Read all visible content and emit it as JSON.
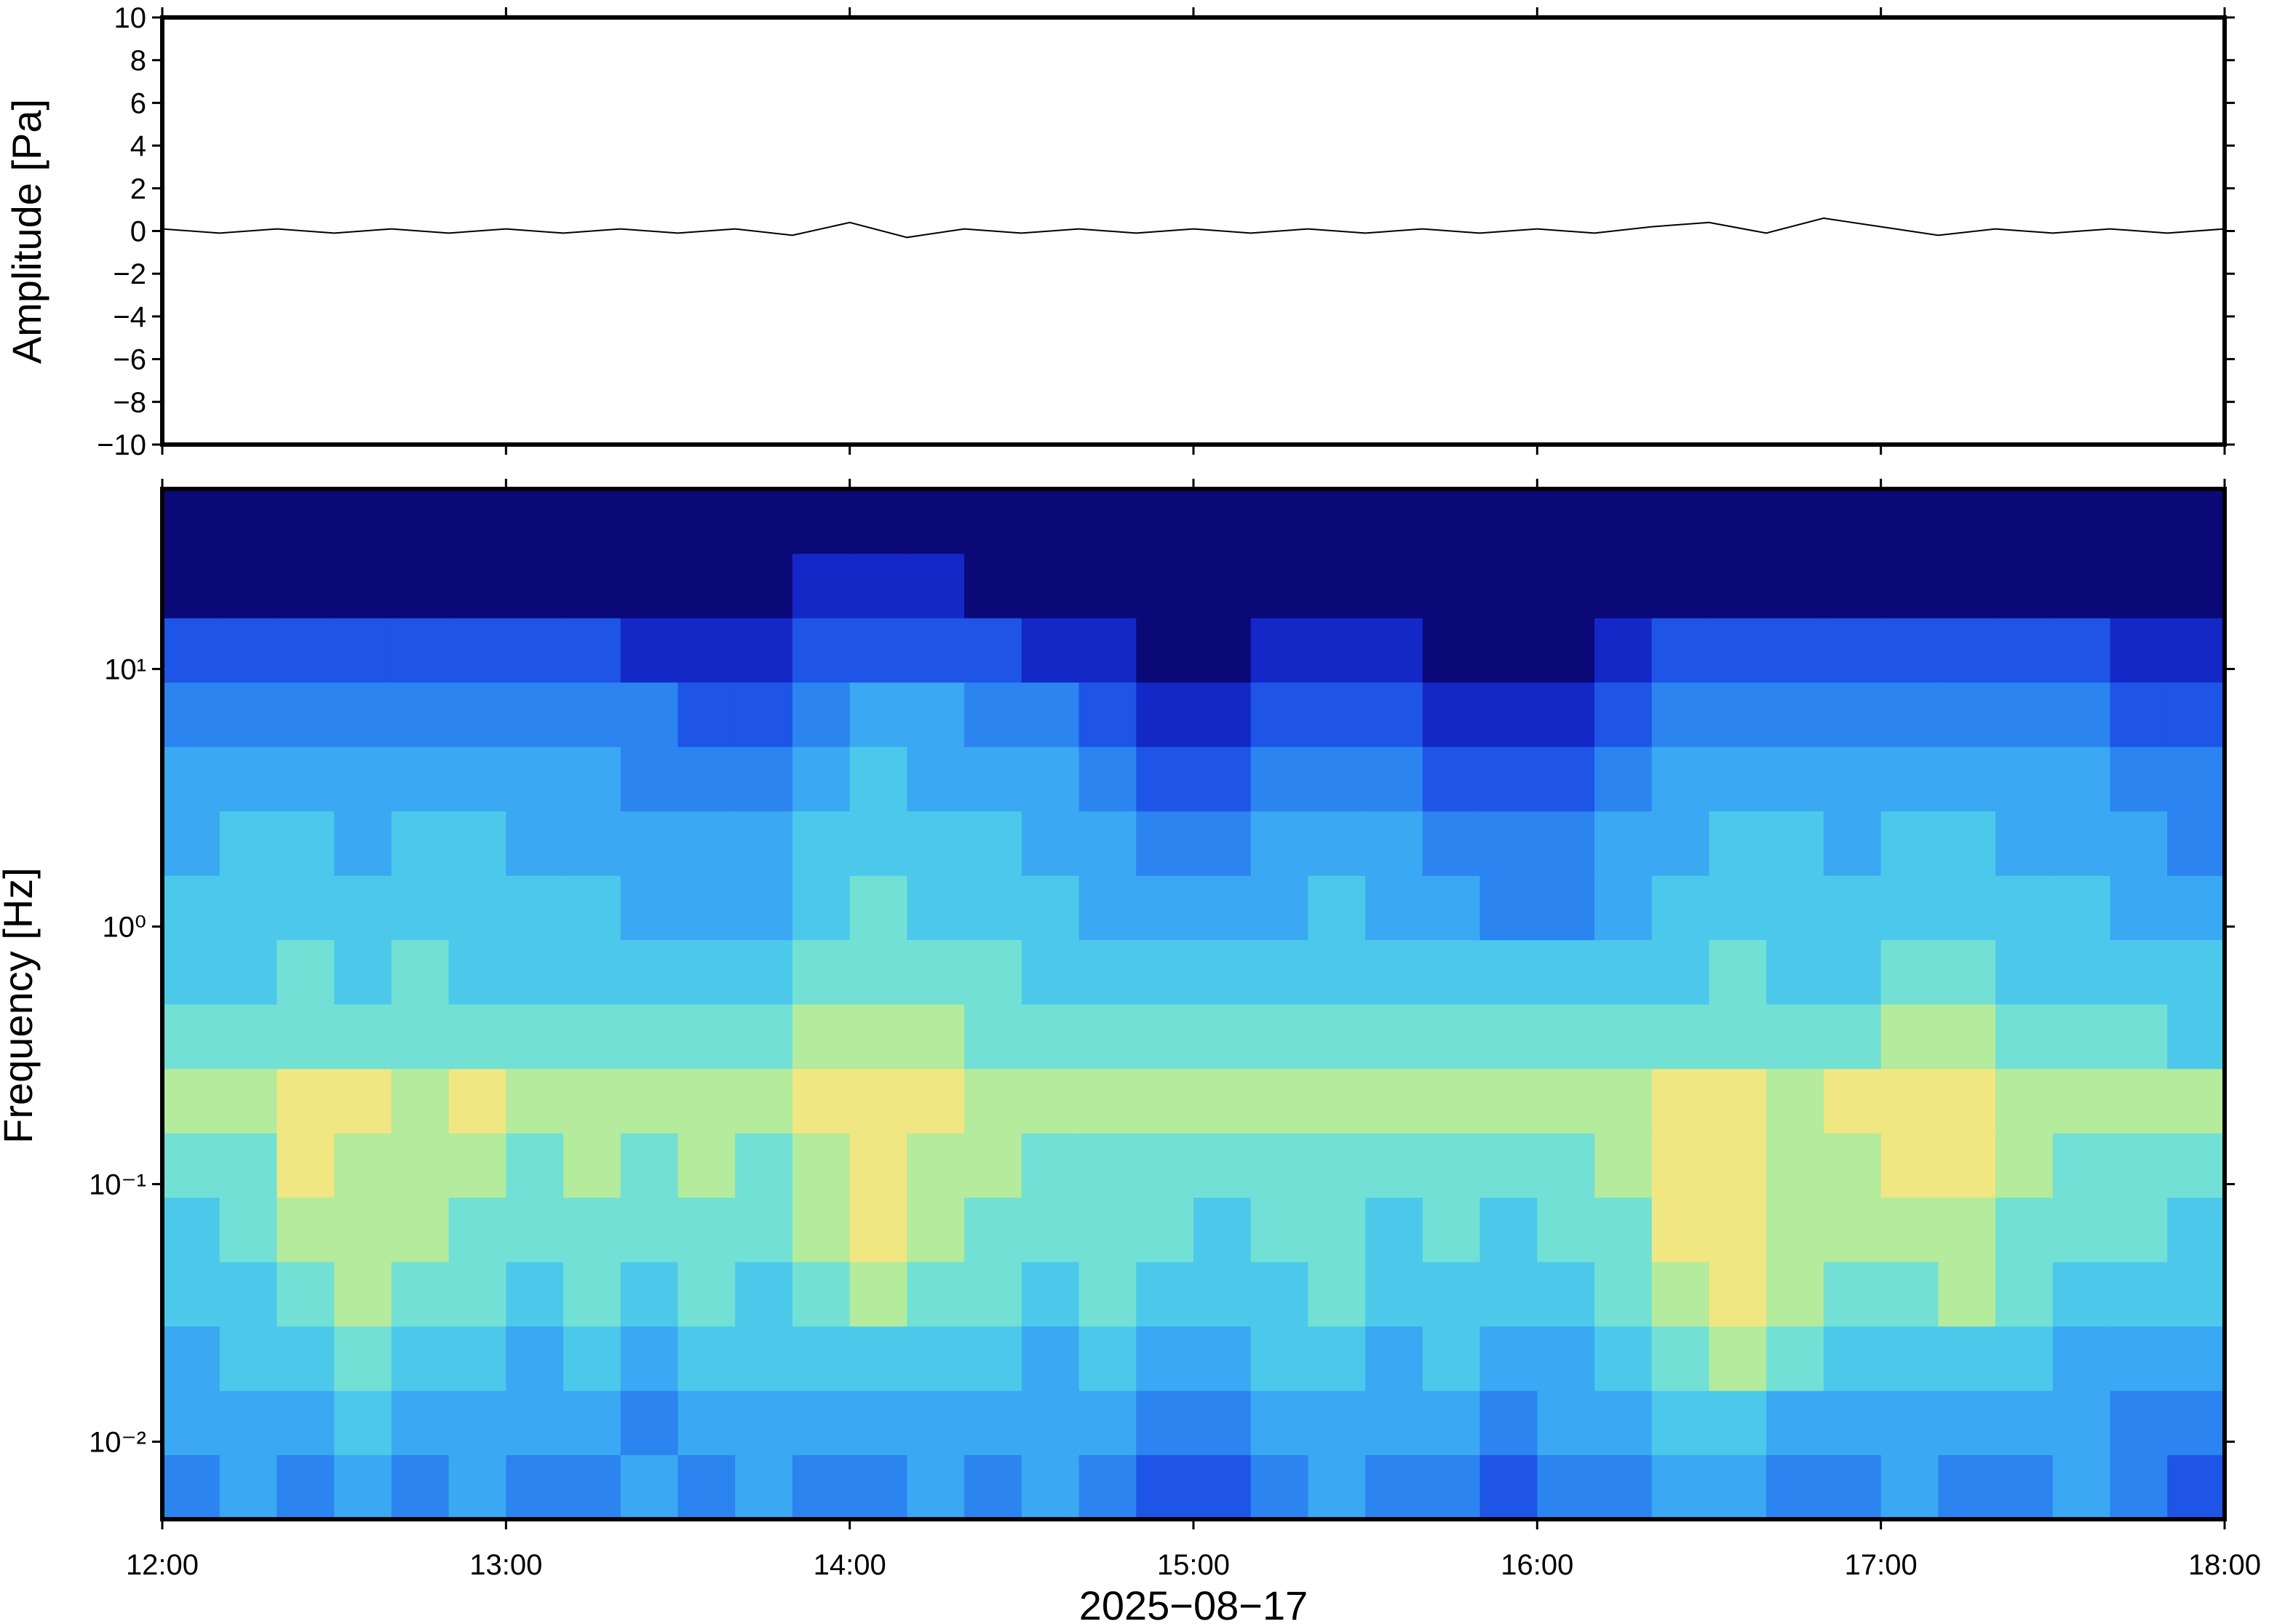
{
  "chart_data": [
    {
      "type": "line",
      "ylabel": "Amplitude [Pa]",
      "color": "#000000",
      "x": [
        12,
        12.1667,
        12.3333,
        12.5,
        12.6667,
        12.8333,
        13,
        13.1667,
        13.3333,
        13.5,
        13.6667,
        13.8333,
        14,
        14.1667,
        14.3333,
        14.5,
        14.6667,
        14.8333,
        15,
        15.1667,
        15.3333,
        15.5,
        15.6667,
        15.8333,
        16,
        16.1667,
        16.3333,
        16.5,
        16.6667,
        16.8333,
        17,
        17.1667,
        17.3333,
        17.5,
        17.6667,
        17.8333,
        18
      ],
      "values": [
        0.1,
        -0.1,
        0.1,
        -0.1,
        0.1,
        -0.1,
        0.1,
        -0.1,
        0.1,
        -0.1,
        0.1,
        -0.2,
        0.4,
        -0.3,
        0.1,
        -0.1,
        0.1,
        -0.1,
        0.1,
        -0.1,
        0.1,
        -0.1,
        0.1,
        -0.1,
        0.1,
        -0.1,
        0.2,
        0.4,
        -0.1,
        0.6,
        0.2,
        -0.2,
        0.1,
        -0.1,
        0.1,
        -0.1,
        0.1
      ],
      "xlim": [
        12,
        18
      ],
      "xticks": [
        12,
        13,
        14,
        15,
        16,
        17,
        18
      ],
      "ylim": [
        -10,
        10
      ],
      "yticks": [
        {
          "value": -10,
          "label": "−10"
        },
        {
          "value": -8,
          "label": "−8"
        },
        {
          "value": -6,
          "label": "−6"
        },
        {
          "value": -4,
          "label": "−4"
        },
        {
          "value": -2,
          "label": "−2"
        },
        0,
        2,
        4,
        6,
        8,
        10
      ]
    },
    {
      "type": "heatmap",
      "ylabel": "Frequency [Hz]",
      "xlabel": "2025−08−17",
      "log_y": true,
      "xlim": [
        12,
        18
      ],
      "ylim": [
        0.005,
        50
      ],
      "xticks": [
        {
          "value": 12,
          "label": "12:00"
        },
        {
          "value": 13,
          "label": "13:00"
        },
        {
          "value": 14,
          "label": "14:00"
        },
        {
          "value": 15,
          "label": "15:00"
        },
        {
          "value": 16,
          "label": "16:00"
        },
        {
          "value": 17,
          "label": "17:00"
        },
        {
          "value": 18,
          "label": "18:00"
        }
      ],
      "yticks": [
        {
          "value": 0.01,
          "label": "10⁻²"
        },
        {
          "value": 0.1,
          "label": "10⁻¹"
        },
        {
          "value": 1,
          "label": "10⁰"
        },
        {
          "value": 10,
          "label": "10¹"
        }
      ],
      "xbins": [
        12,
        12.1667,
        12.3333,
        12.5,
        12.6667,
        12.8333,
        13,
        13.1667,
        13.3333,
        13.5,
        13.6667,
        13.8333,
        14,
        14.1667,
        14.3333,
        14.5,
        14.6667,
        14.8333,
        15,
        15.1667,
        15.3333,
        15.5,
        15.6667,
        15.8333,
        16,
        16.1667,
        16.3333,
        16.5,
        16.6667,
        16.8333,
        17,
        17.1667,
        17.3333,
        17.5,
        17.6667,
        17.8333,
        18
      ],
      "ybins": [
        0.005,
        0.0089,
        0.0158,
        0.0281,
        0.05,
        0.0889,
        0.158,
        0.281,
        0.5,
        0.889,
        1.58,
        2.81,
        5,
        8.89,
        15.8,
        28.1,
        50
      ],
      "colors": [
        "#0b0878",
        "#1428c8",
        "#1e55e6",
        "#2b84f0",
        "#3aa8f2",
        "#4cc9ea",
        "#72e0d4",
        "#b4eb9c",
        "#f0e682",
        "#f6c070",
        "#ee8060"
      ],
      "values": [
        [
          3,
          4,
          3,
          4,
          3,
          4,
          3,
          3,
          4,
          3,
          4,
          3,
          3,
          4,
          3,
          4,
          3,
          2,
          2,
          3,
          4,
          3,
          3,
          2,
          3,
          3,
          4,
          4,
          3,
          3,
          4,
          3,
          3,
          4,
          3,
          2
        ],
        [
          4,
          4,
          4,
          5,
          4,
          4,
          4,
          4,
          3,
          4,
          4,
          4,
          4,
          4,
          4,
          4,
          4,
          3,
          3,
          4,
          4,
          4,
          4,
          3,
          4,
          4,
          5,
          5,
          4,
          4,
          4,
          4,
          4,
          4,
          3,
          3
        ],
        [
          4,
          5,
          5,
          6,
          5,
          5,
          4,
          5,
          4,
          5,
          5,
          5,
          5,
          5,
          5,
          4,
          5,
          4,
          4,
          5,
          5,
          4,
          5,
          4,
          4,
          5,
          6,
          7,
          6,
          5,
          5,
          5,
          5,
          4,
          4,
          4
        ],
        [
          5,
          5,
          6,
          7,
          6,
          6,
          5,
          6,
          5,
          6,
          5,
          6,
          7,
          6,
          6,
          5,
          6,
          5,
          5,
          5,
          6,
          5,
          5,
          5,
          5,
          6,
          7,
          8,
          7,
          6,
          6,
          7,
          6,
          5,
          5,
          5
        ],
        [
          5,
          6,
          7,
          7,
          7,
          6,
          6,
          6,
          6,
          6,
          6,
          7,
          8,
          7,
          6,
          6,
          6,
          6,
          5,
          6,
          6,
          5,
          6,
          5,
          6,
          6,
          8,
          8,
          7,
          7,
          7,
          7,
          6,
          6,
          6,
          5
        ],
        [
          6,
          6,
          8,
          7,
          7,
          7,
          6,
          7,
          6,
          7,
          6,
          7,
          8,
          7,
          7,
          6,
          6,
          6,
          6,
          6,
          6,
          6,
          6,
          6,
          6,
          7,
          8,
          8,
          7,
          7,
          8,
          8,
          7,
          6,
          6,
          6
        ],
        [
          7,
          7,
          8,
          8,
          7,
          8,
          7,
          7,
          7,
          7,
          7,
          8,
          8,
          8,
          7,
          7,
          7,
          7,
          7,
          7,
          7,
          7,
          7,
          7,
          7,
          7,
          8,
          8,
          7,
          8,
          8,
          8,
          7,
          7,
          7,
          7
        ],
        [
          6,
          6,
          6,
          6,
          6,
          6,
          6,
          6,
          6,
          6,
          6,
          7,
          7,
          7,
          6,
          6,
          6,
          6,
          6,
          6,
          6,
          6,
          6,
          6,
          6,
          6,
          6,
          6,
          6,
          6,
          7,
          7,
          6,
          6,
          6,
          5
        ],
        [
          5,
          5,
          6,
          5,
          6,
          5,
          5,
          5,
          5,
          5,
          5,
          6,
          6,
          6,
          6,
          5,
          5,
          5,
          5,
          5,
          5,
          5,
          5,
          5,
          5,
          5,
          5,
          6,
          5,
          5,
          6,
          6,
          5,
          5,
          5,
          5
        ],
        [
          5,
          5,
          5,
          5,
          5,
          5,
          5,
          5,
          4,
          4,
          4,
          5,
          6,
          5,
          5,
          5,
          4,
          4,
          4,
          4,
          5,
          4,
          4,
          3,
          3,
          4,
          5,
          5,
          5,
          5,
          5,
          5,
          5,
          5,
          4,
          4
        ],
        [
          4,
          5,
          5,
          4,
          5,
          5,
          4,
          4,
          4,
          4,
          4,
          5,
          5,
          5,
          5,
          4,
          4,
          3,
          3,
          4,
          4,
          4,
          3,
          3,
          3,
          4,
          4,
          5,
          5,
          4,
          5,
          5,
          4,
          4,
          4,
          3
        ],
        [
          4,
          4,
          4,
          4,
          4,
          4,
          4,
          4,
          3,
          3,
          3,
          4,
          5,
          4,
          4,
          4,
          3,
          2,
          2,
          3,
          3,
          3,
          2,
          2,
          2,
          3,
          4,
          4,
          4,
          4,
          4,
          4,
          4,
          4,
          3,
          3
        ],
        [
          3,
          3,
          3,
          3,
          3,
          3,
          3,
          3,
          3,
          2,
          2,
          3,
          4,
          4,
          3,
          3,
          2,
          1,
          1,
          2,
          2,
          2,
          1,
          1,
          1,
          2,
          3,
          3,
          3,
          3,
          3,
          3,
          3,
          3,
          2,
          2
        ],
        [
          2,
          2,
          2,
          2,
          2,
          2,
          2,
          2,
          1,
          1,
          1,
          2,
          2,
          2,
          2,
          1,
          1,
          0,
          0,
          1,
          1,
          1,
          0,
          0,
          0,
          1,
          2,
          2,
          2,
          2,
          2,
          2,
          2,
          2,
          1,
          1
        ],
        [
          0,
          0,
          0,
          0,
          0,
          0,
          0,
          0,
          0,
          0,
          0,
          1,
          1,
          1,
          0,
          0,
          0,
          0,
          0,
          0,
          0,
          0,
          0,
          0,
          0,
          0,
          0,
          0,
          0,
          0,
          0,
          0,
          0,
          0,
          0,
          0
        ],
        [
          0,
          0,
          0,
          0,
          0,
          0,
          0,
          0,
          0,
          0,
          0,
          0,
          0,
          0,
          0,
          0,
          0,
          0,
          0,
          0,
          0,
          0,
          0,
          0,
          0,
          0,
          0,
          0,
          0,
          0,
          0,
          0,
          0,
          0,
          0,
          0
        ]
      ]
    }
  ]
}
